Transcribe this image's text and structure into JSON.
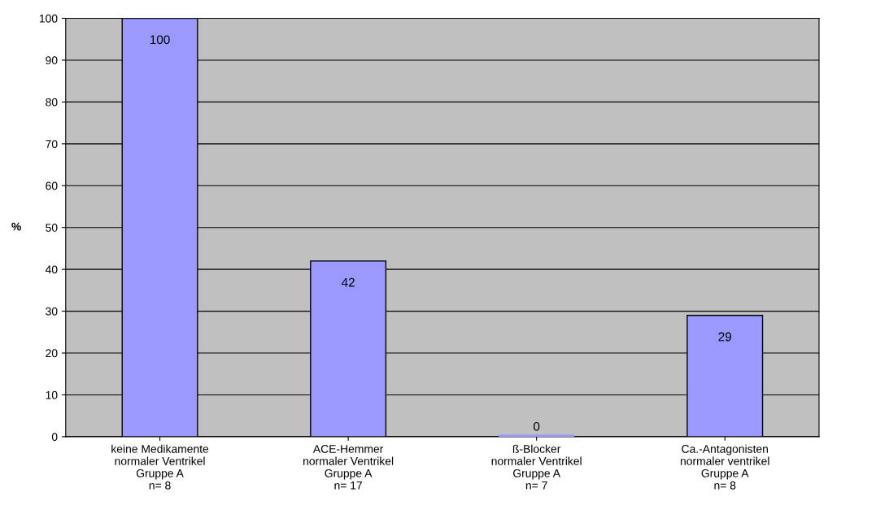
{
  "chart_data": {
    "type": "bar",
    "categories": [
      "keine Medikamente\nnormaler Ventrikel\nGruppe A\nn= 8",
      "ACE-Hemmer\nnormaler Ventrikel\nGruppe A\nn= 17",
      "ß-Blocker\nnormaler Ventrikel\nGruppe A\nn= 7",
      "Ca.-Antagonisten\nnormaler ventrikel\nGruppe A\nn= 8"
    ],
    "values": [
      100,
      42,
      0,
      29
    ],
    "color": "#9999ff",
    "ylabel": "%",
    "ylim": [
      0,
      100
    ],
    "yticks": [
      0,
      10,
      20,
      30,
      40,
      50,
      60,
      70,
      80,
      90,
      100
    ],
    "grid": "y",
    "data_labels": true
  }
}
